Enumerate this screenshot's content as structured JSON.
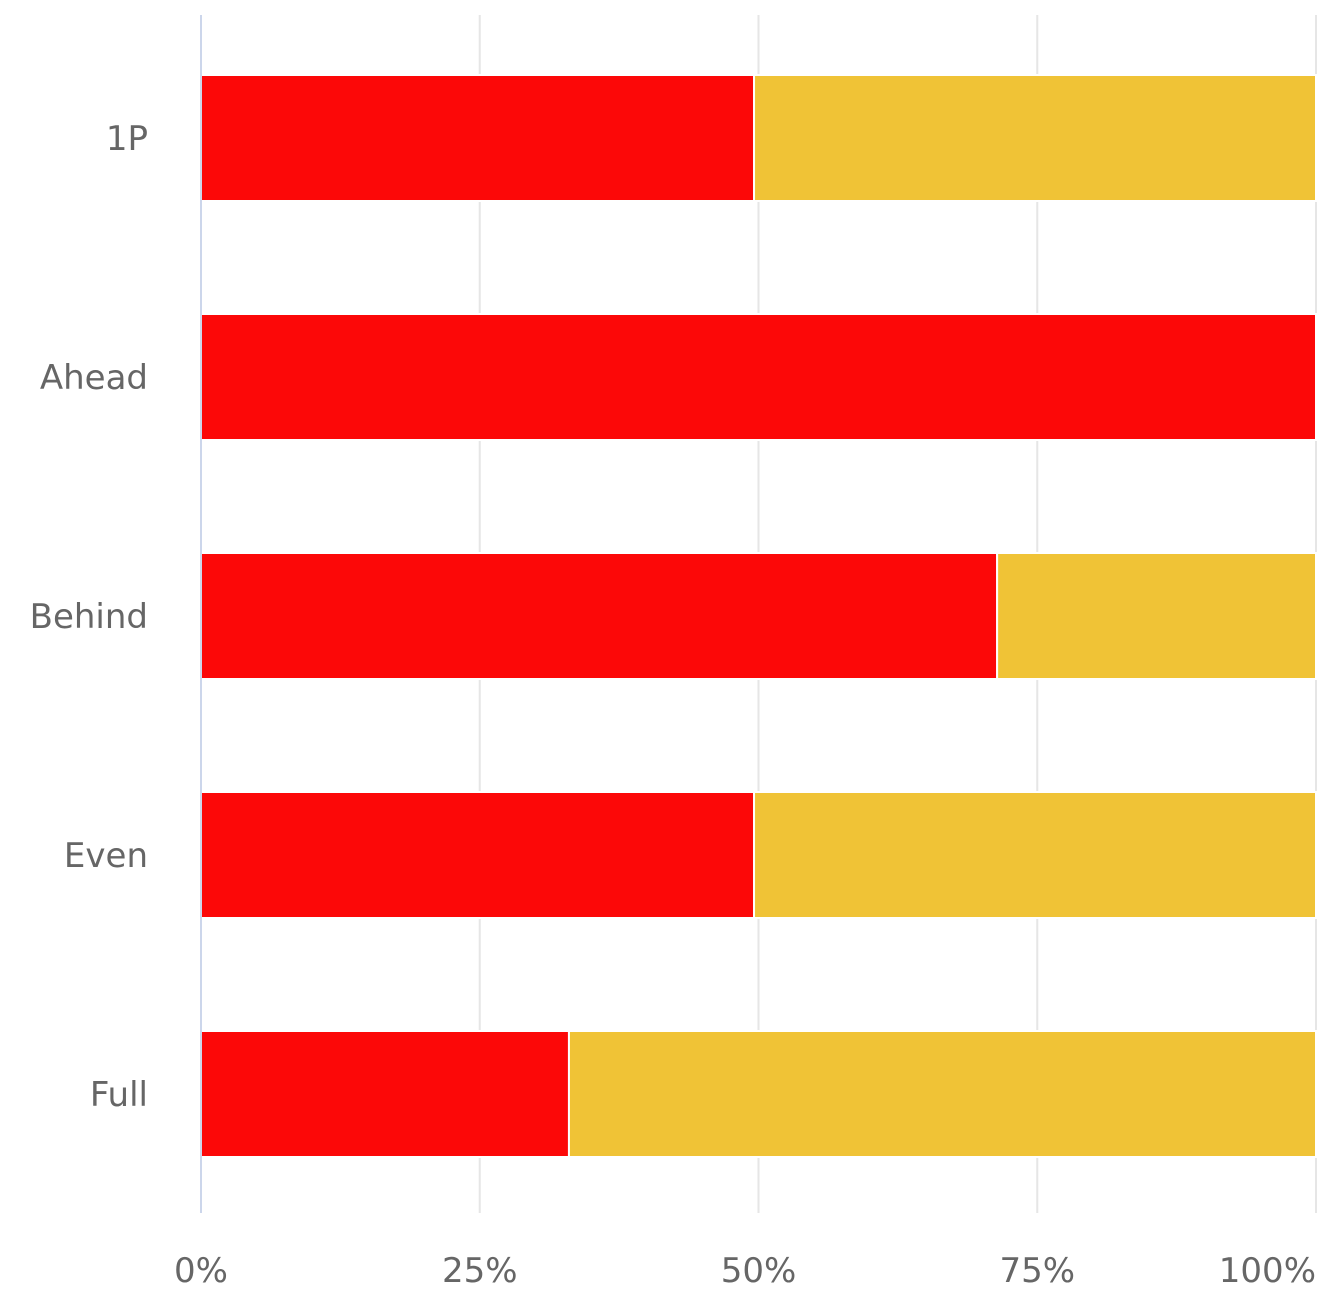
{
  "chart_data": {
    "type": "bar",
    "orientation": "horizontal",
    "stacked": true,
    "normalized": true,
    "categories": [
      "1P",
      "Ahead",
      "Behind",
      "Even",
      "Full"
    ],
    "series": [
      {
        "color": "#fc0808",
        "values": [
          49.6,
          100,
          71.4,
          49.6,
          33.0
        ]
      },
      {
        "color": "#f0c336",
        "values": [
          50.4,
          0,
          28.6,
          50.4,
          67.0
        ]
      }
    ],
    "xlim": [
      0,
      100
    ],
    "xticks": [
      0,
      25,
      50,
      75,
      100
    ],
    "xtick_labels": [
      "0%",
      "25%",
      "50%",
      "75%",
      "100%"
    ],
    "grid": true,
    "legend": "none"
  }
}
